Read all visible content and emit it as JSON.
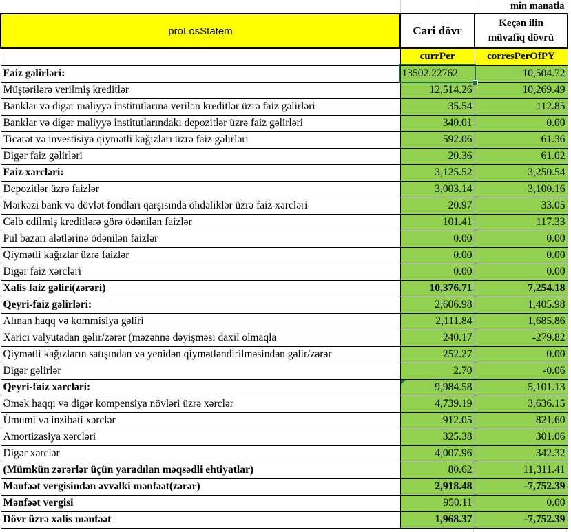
{
  "sheet": {
    "units_note": "min manatla",
    "title": "proLosStatem",
    "columns": {
      "current_label": "Cari dövr",
      "prior_label": "Keçən ilin müvafiq dövrü",
      "current_code": "currPer",
      "prior_code": "corresPerOfPY"
    },
    "selected_cell": {
      "row_index": 0,
      "column": "current",
      "value": "13502.22762"
    },
    "colors": {
      "data_fill_green": "#92D050",
      "header_fill_yellow": "#FFFF00",
      "selection_border_green": "#1F7245",
      "gridline_gray": "#D9D9D9",
      "border_black": "#000000"
    },
    "rows": [
      {
        "label": "Faiz gəlirləri:",
        "curr": "13502.22762",
        "prior": "10,504.72",
        "bold_label": true,
        "selected_curr": true,
        "curr_align_left": true
      },
      {
        "label": "Müştərilərə verilmiş kreditlər",
        "curr": "12,514.26",
        "prior": "10,269.49"
      },
      {
        "label": "Banklar və digər maliyyə institutlarına verilən kreditlər üzrə faiz gəlirləri",
        "curr": "35.54",
        "prior": "112.85"
      },
      {
        "label": "Banklar və digər maliyyə institutlarındakı depozitlər üzrə faiz gəlirləri",
        "curr": "340.01",
        "prior": "0.00"
      },
      {
        "label": "Ticarət və investisiya qiymətli kağızları üzrə faiz gəlirləri",
        "curr": "592.06",
        "prior": "61.36"
      },
      {
        "label": "Digər faiz gəlirləri",
        "curr": "20.36",
        "prior": "61.02"
      },
      {
        "label": "Faiz xərcləri:",
        "curr": "3,125.52",
        "prior": "3,250.54",
        "bold_label": true
      },
      {
        "label": "Depozitlər üzrə faizlər",
        "curr": "3,003.14",
        "prior": "3,100.16"
      },
      {
        "label": "Mərkəzi bank və dövlət fondları qarşısında öhdəliklər üzrə faiz xərcləri",
        "curr": "20.97",
        "prior": "33.05"
      },
      {
        "label": "Cəlb edilmiş kreditlərə görə ödənilən faizlər",
        "curr": "101.41",
        "prior": "117.33"
      },
      {
        "label": "Pul bazarı alətlərinə ödənilən faizlər",
        "curr": "0.00",
        "prior": "0.00"
      },
      {
        "label": "Qiymətli kağızlar üzrə faizlər",
        "curr": "0.00",
        "prior": "0.00"
      },
      {
        "label": "Digər faiz xərcləri",
        "curr": "0.00",
        "prior": "0.00"
      },
      {
        "label": "Xalis faiz gəliri(zərəri)",
        "curr": "10,376.71",
        "prior": "7,254.18",
        "bold_label": true,
        "bold_values": true
      },
      {
        "label": "Qeyri-faiz gəlirləri:",
        "curr": "2,606.98",
        "prior": "1,405.98",
        "bold_label": true
      },
      {
        "label": "Alınan haqq və kommisiya gəliri",
        "curr": "2,111.84",
        "prior": "1,685.86"
      },
      {
        "label": "Xarici valyutadan gəlir/zərər (məzənnə dəyişməsi daxil olmaqla",
        "curr": "240.17",
        "prior": "-279.82"
      },
      {
        "label": "Qiymətli kağızların satışından və yenidən qiymətləndirilməsindən gəlir/zərər",
        "curr": "252.27",
        "prior": "0.00"
      },
      {
        "label": "Digər gəlirlər",
        "curr": "2.70",
        "prior": "-0.06"
      },
      {
        "label": "Qeyri-faiz xərcləri:",
        "curr": "9,984.58",
        "prior": "5,101.13",
        "bold_label": true,
        "error_marker_curr": true
      },
      {
        "label": "Əmək haqqı və digər kompensiya növləri üzrə xərclər",
        "curr": "4,739.19",
        "prior": "3,636.15"
      },
      {
        "label": "Ümumi və inzibati xərclər",
        "curr": "912.05",
        "prior": "821.60"
      },
      {
        "label": "Amortizasiya xərcləri",
        "curr": "325.38",
        "prior": "301.06"
      },
      {
        "label": "Digər xərclər",
        "curr": "4,007.96",
        "prior": "342.32"
      },
      {
        "label": "(Mümkün zərərlər üçün yaradılan məqsədli ehtiyatlar)",
        "curr": "80.62",
        "prior": "11,311.41",
        "bold_label": true
      },
      {
        "label": "Mənfəət vergisindən əvvəlki mənfəət(zərər)",
        "curr": "2,918.48",
        "prior": "-7,752.39",
        "bold_label": true,
        "bold_values": true
      },
      {
        "label": "Mənfəət vergisi",
        "curr": "950.11",
        "prior": "0.00",
        "bold_label": true
      },
      {
        "label": "Dövr üzrə xalis mənfəət",
        "curr": "1,968.37",
        "prior": "-7,752.39",
        "bold_label": true,
        "bold_values": true
      }
    ]
  }
}
